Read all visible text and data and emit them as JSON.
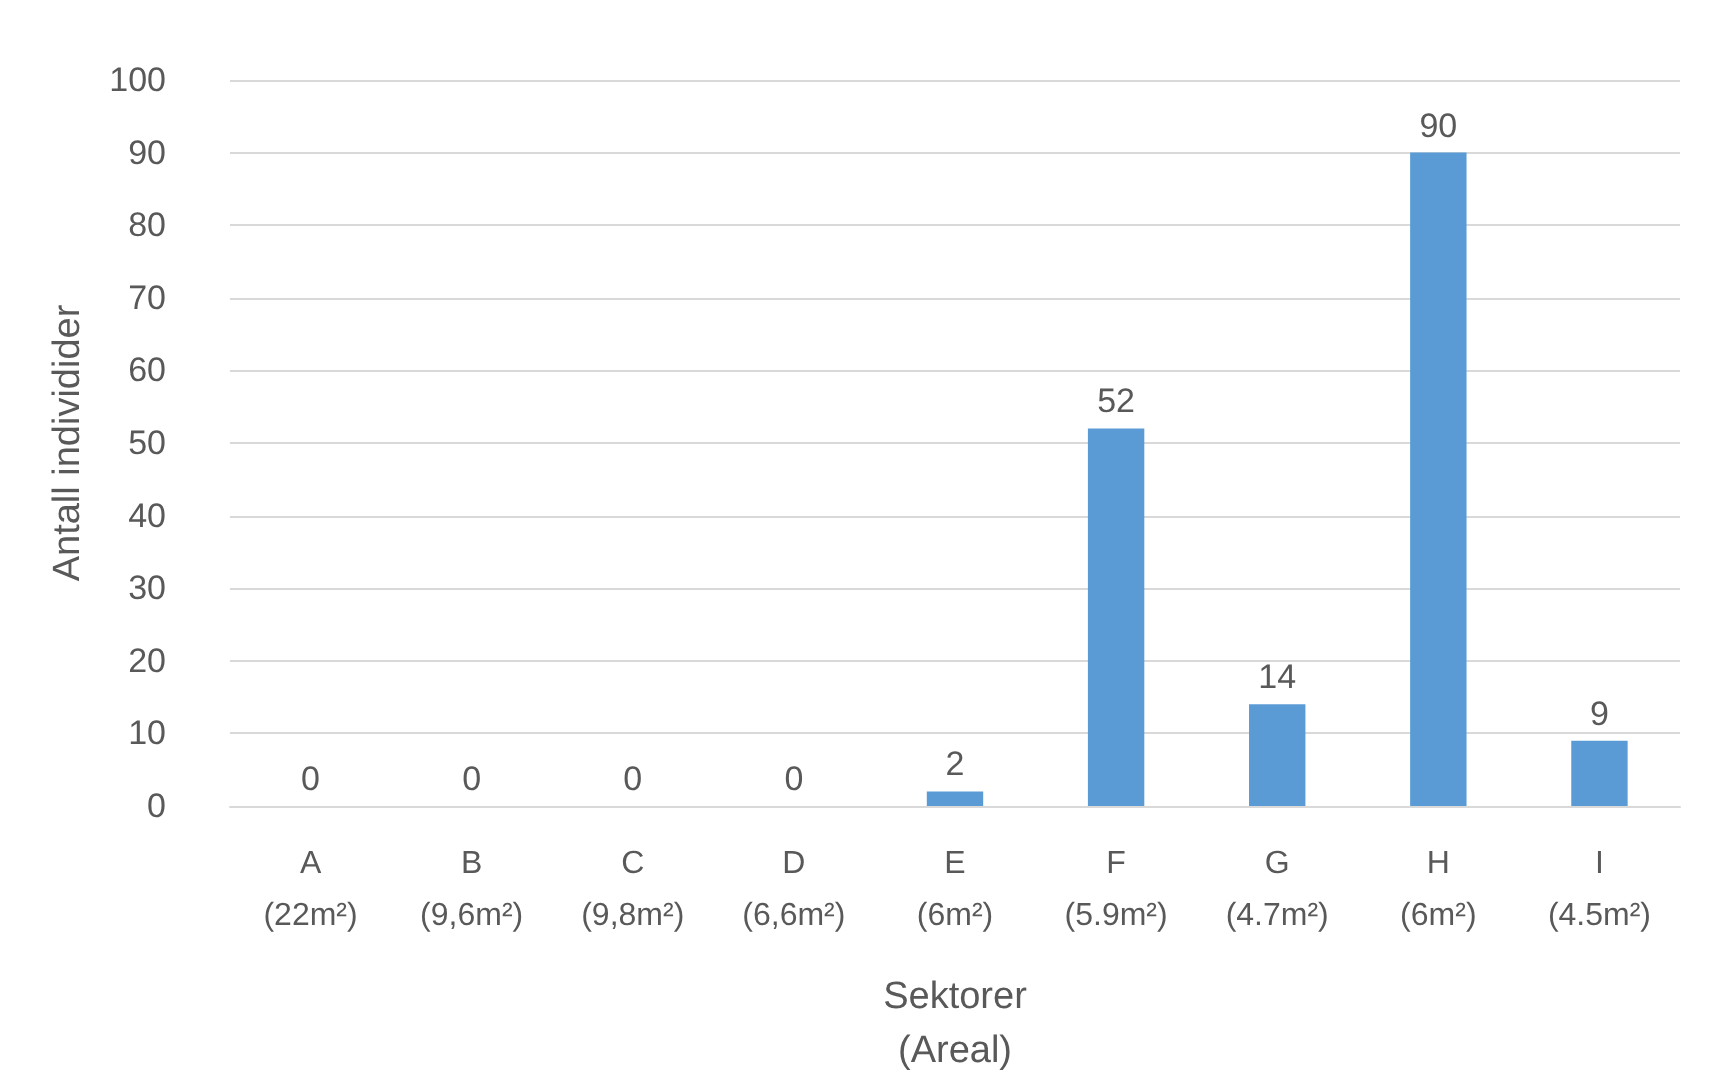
{
  "chart_data": {
    "type": "bar",
    "categories": [
      "A\n(22m²)",
      "B\n(9,6m²)",
      "C\n(9,8m²)",
      "D\n(6,6m²)",
      "E\n(6m²)",
      "F\n(5.9m²)",
      "G\n(4.7m²)",
      "H\n(6m²)",
      "I\n(4.5m²)"
    ],
    "values": [
      0,
      0,
      0,
      0,
      2,
      52,
      14,
      90,
      9
    ],
    "color": "#5b9bd5",
    "xlabel": "Sektorer\n(Areal)",
    "ylabel": "Antall individider",
    "ylim": [
      0,
      100
    ],
    "yticks": [
      0,
      10,
      20,
      30,
      40,
      50,
      60,
      70,
      80,
      90,
      100
    ],
    "grid": "y",
    "data_labels": true
  }
}
